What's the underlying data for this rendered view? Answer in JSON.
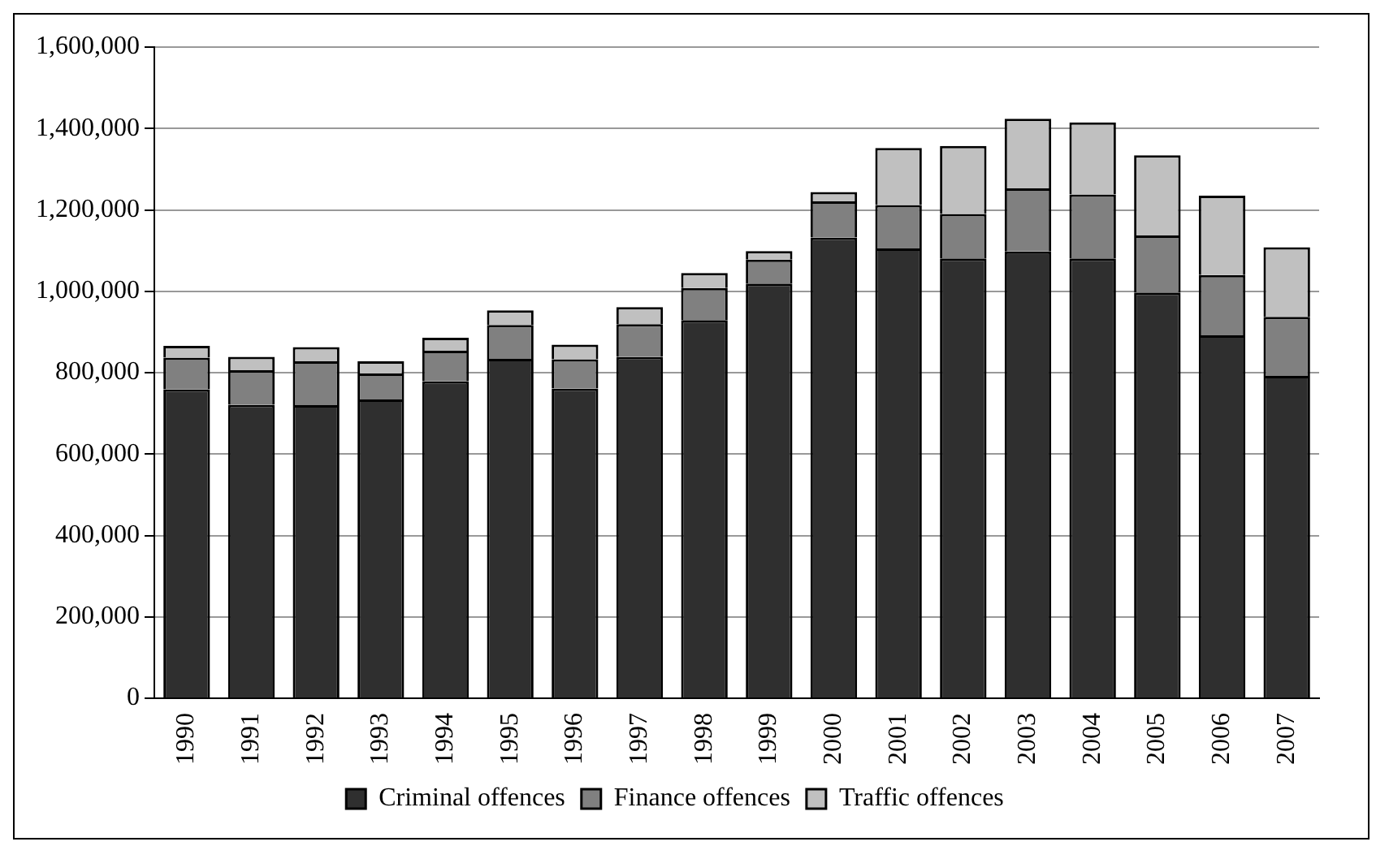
{
  "chart_data": {
    "type": "bar",
    "stacked": true,
    "categories": [
      "1990",
      "1991",
      "1992",
      "1993",
      "1994",
      "1995",
      "1996",
      "1997",
      "1998",
      "1999",
      "2000",
      "2001",
      "2002",
      "2003",
      "2004",
      "2005",
      "2006",
      "2007"
    ],
    "series": [
      {
        "name": "Criminal offences",
        "color": "#2f2f2f",
        "values": [
          759000,
          721000,
          720000,
          734000,
          779000,
          834000,
          761000,
          839000,
          929000,
          1019000,
          1132000,
          1105000,
          1081000,
          1098000,
          1081000,
          997000,
          892000,
          792000
        ]
      },
      {
        "name": "Finance offences",
        "color": "#808080",
        "values": [
          78000,
          85000,
          108000,
          64000,
          75000,
          83000,
          72000,
          80000,
          79000,
          59000,
          89000,
          107000,
          109000,
          155000,
          157000,
          140000,
          148000,
          145000
        ]
      },
      {
        "name": "Traffic offences",
        "color": "#c0c0c0",
        "values": [
          29000,
          33000,
          35000,
          30000,
          32000,
          36000,
          36000,
          42000,
          37000,
          21000,
          23000,
          140000,
          167000,
          171000,
          177000,
          197000,
          195000,
          171000
        ]
      }
    ],
    "ylim": [
      0,
      1600000
    ],
    "yticks": [
      {
        "value": 0,
        "label": "0"
      },
      {
        "value": 200000,
        "label": "200,000"
      },
      {
        "value": 400000,
        "label": "400,000"
      },
      {
        "value": 600000,
        "label": "600,000"
      },
      {
        "value": 800000,
        "label": "800,000"
      },
      {
        "value": 1000000,
        "label": "1,000,000"
      },
      {
        "value": 1200000,
        "label": "1,200,000"
      },
      {
        "value": 1400000,
        "label": "1,400,000"
      },
      {
        "value": 1600000,
        "label": "1,600,000"
      }
    ],
    "grid": "y",
    "legend": "bottom"
  }
}
